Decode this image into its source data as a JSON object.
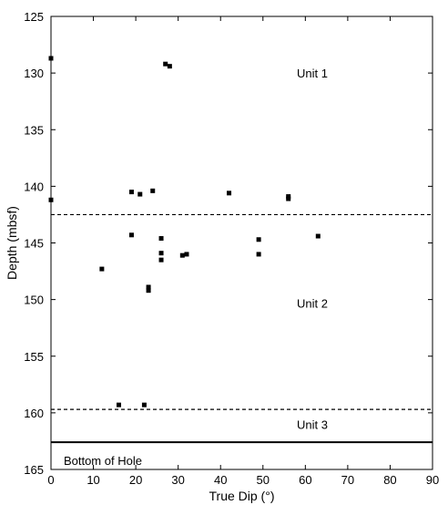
{
  "chart_data": {
    "type": "scatter",
    "xlabel": "True Dip (°)",
    "ylabel": "Depth (mbsf)",
    "xlim": [
      0,
      90
    ],
    "ylim": [
      165,
      125
    ],
    "y_axis_inverted": true,
    "x_ticks": [
      0,
      10,
      20,
      30,
      40,
      50,
      60,
      70,
      80,
      90
    ],
    "y_ticks": [
      125,
      130,
      135,
      140,
      145,
      150,
      155,
      160,
      165
    ],
    "grid": false,
    "marker": "filled-square",
    "marker_color": "#000000",
    "points": [
      {
        "x": 0,
        "y": 128.7
      },
      {
        "x": 27,
        "y": 129.2
      },
      {
        "x": 28,
        "y": 129.4
      },
      {
        "x": 0,
        "y": 141.2
      },
      {
        "x": 19,
        "y": 140.5
      },
      {
        "x": 21,
        "y": 140.7
      },
      {
        "x": 24,
        "y": 140.4
      },
      {
        "x": 42,
        "y": 140.6
      },
      {
        "x": 56,
        "y": 140.9
      },
      {
        "x": 56,
        "y": 141.1
      },
      {
        "x": 19,
        "y": 144.3
      },
      {
        "x": 26,
        "y": 144.6
      },
      {
        "x": 49,
        "y": 144.7
      },
      {
        "x": 63,
        "y": 144.4
      },
      {
        "x": 26,
        "y": 145.9
      },
      {
        "x": 26,
        "y": 146.5
      },
      {
        "x": 31,
        "y": 146.1
      },
      {
        "x": 32,
        "y": 146.0
      },
      {
        "x": 49,
        "y": 146.0
      },
      {
        "x": 12,
        "y": 147.3
      },
      {
        "x": 23,
        "y": 148.9
      },
      {
        "x": 23,
        "y": 149.2
      },
      {
        "x": 16,
        "y": 159.3
      },
      {
        "x": 22,
        "y": 159.3
      }
    ],
    "boundaries": [
      {
        "y": 142.5,
        "style": "dashed"
      },
      {
        "y": 159.7,
        "style": "dashed"
      },
      {
        "y": 162.6,
        "style": "solid"
      }
    ],
    "annotations": [
      {
        "text": "Unit 1",
        "x": 58,
        "y": 130.0
      },
      {
        "text": "Unit 2",
        "x": 58,
        "y": 150.3
      },
      {
        "text": "Unit 3",
        "x": 58,
        "y": 161.0
      },
      {
        "text": "Bottom of Hole",
        "x": 3,
        "y": 164.2
      }
    ]
  }
}
